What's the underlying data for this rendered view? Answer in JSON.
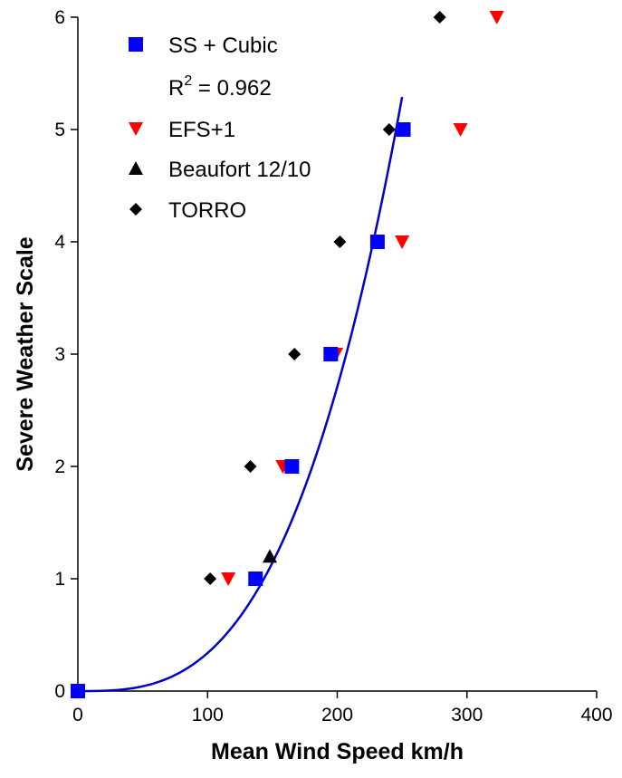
{
  "chart_data": {
    "type": "scatter",
    "title": "",
    "xlabel": "Mean Wind Speed km/h",
    "ylabel": "Severe Weather Scale",
    "xlim": [
      0,
      400
    ],
    "ylim": [
      0,
      6
    ],
    "xticks": [
      "0",
      "100",
      "200",
      "300",
      "400"
    ],
    "yticks": [
      "0",
      "1",
      "2",
      "3",
      "4",
      "5",
      "6"
    ],
    "grid": false,
    "legend_position": "top-left",
    "series": [
      {
        "name": "SS + Cubic",
        "marker": "square",
        "color": "#0000ff",
        "points": [
          [
            0,
            0
          ],
          [
            137,
            1
          ],
          [
            165,
            2
          ],
          [
            195,
            3
          ],
          [
            231,
            4
          ],
          [
            251,
            5
          ]
        ]
      },
      {
        "name": "EFS+1",
        "marker": "triangle-down",
        "color": "#ff0000",
        "points": [
          [
            116,
            1
          ],
          [
            158,
            2
          ],
          [
            199,
            3
          ],
          [
            250,
            4
          ],
          [
            295,
            5
          ],
          [
            323,
            6
          ]
        ]
      },
      {
        "name": "Beaufort 12/10",
        "marker": "triangle-up",
        "color": "#000000",
        "points": [
          [
            148,
            1.2
          ]
        ]
      },
      {
        "name": "TORRO",
        "marker": "diamond",
        "color": "#000000",
        "points": [
          [
            102,
            1
          ],
          [
            133,
            2
          ],
          [
            167,
            3
          ],
          [
            202,
            4
          ],
          [
            240,
            5
          ],
          [
            279,
            6
          ]
        ]
      }
    ],
    "fit": {
      "name": "SS + Cubic",
      "color": "#0000cc",
      "equation": "y = 5.29 * (x / 250)^3",
      "x_range": [
        0,
        250
      ],
      "coefficient": 5.29,
      "x_ref": 250,
      "r_squared_label": "R",
      "r_squared_sup": "2",
      "r_squared_value": " = 0.962"
    }
  }
}
